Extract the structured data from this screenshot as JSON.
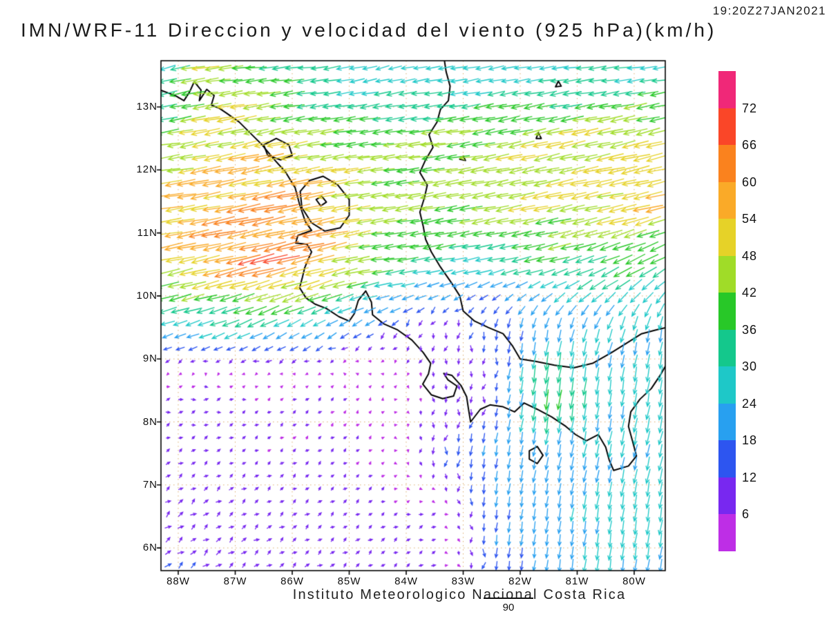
{
  "header": {
    "title": "IMN/WRF-11 Direccion y velocidad del viento (925 hPa)(km/h)",
    "timestamp": "19:20Z27JAN2021"
  },
  "footer": {
    "credit": "Instituto Meteorologico Nacional Costa Rica",
    "reference_vector_label": "90"
  },
  "chart_data": {
    "type": "vector-field-map",
    "title": "IMN/WRF-11 Direccion y velocidad del viento (925 hPa)(km/h)",
    "valid_time": "19:20Z27JAN2021",
    "variable": "wind direction and speed",
    "level_hpa": 925,
    "units": "km/h",
    "lon_range_deg": [
      -88.3,
      -79.45
    ],
    "lat_range_deg": [
      5.64,
      13.73
    ],
    "lat_tick_deg": [
      13,
      12,
      11,
      10,
      9,
      8,
      7,
      6
    ],
    "lat_tick_labels": [
      "13N",
      "12N",
      "11N",
      "10N",
      "9N",
      "8N",
      "7N",
      "6N"
    ],
    "lon_tick_deg": [
      -88,
      -87,
      -86,
      -85,
      -84,
      -83,
      -82,
      -81,
      -80
    ],
    "lon_tick_labels": [
      "88W",
      "87W",
      "86W",
      "85W",
      "84W",
      "83W",
      "82W",
      "81W",
      "80W"
    ],
    "reference_vector_kmh": 90,
    "colorbar": {
      "tick_labels": [
        "72",
        "66",
        "60",
        "54",
        "48",
        "42",
        "36",
        "30",
        "24",
        "18",
        "12",
        "6"
      ],
      "thresholds_kmh": [
        6,
        12,
        18,
        24,
        30,
        36,
        42,
        48,
        54,
        60,
        66,
        72
      ],
      "cell_colors_top_to_bottom": [
        "#f02878",
        "#fa4628",
        "#fa821e",
        "#faaa28",
        "#e6d228",
        "#a0dc28",
        "#28c828",
        "#14c88c",
        "#1ec8c8",
        "#28a0f0",
        "#2d55f0",
        "#7828f0",
        "#be2ee6"
      ]
    },
    "wind_grid": {
      "note": "u eastward km/h, v northward km/h; rows ordered south-to-north matching lats",
      "lats": [
        5.5,
        6.5,
        7.5,
        8.5,
        9.5,
        10.5,
        11.5,
        12.5,
        13.5
      ],
      "lons": [
        -88.5,
        -87.5,
        -86.5,
        -85.5,
        -84.5,
        -83.5,
        -82.5,
        -81.5,
        -80.5,
        -79.5
      ],
      "u": [
        [
          11,
          9,
          8,
          7,
          6,
          6,
          -2,
          -3,
          -3,
          -4
        ],
        [
          9,
          8,
          7,
          6,
          6,
          7,
          -2,
          -3,
          -4,
          -4
        ],
        [
          6,
          6,
          5,
          5,
          4,
          -2,
          -3,
          -4,
          -5,
          -6
        ],
        [
          7,
          8,
          5,
          5,
          2,
          0,
          -2,
          -6,
          -3,
          -5
        ],
        [
          -23,
          -26,
          -26,
          -20,
          -12,
          -3,
          -2,
          -4,
          -8,
          -4
        ],
        [
          -48,
          -55,
          -64,
          -56,
          -40,
          -30,
          -29,
          -34,
          -34,
          -32
        ],
        [
          -54,
          -56,
          -60,
          -56,
          -44,
          -44,
          -45,
          -48,
          -50,
          -52
        ],
        [
          -36,
          -50,
          -48,
          -42,
          -40,
          -42,
          -43,
          -46,
          -48,
          -48
        ],
        [
          -22,
          -46,
          -38,
          -29,
          -25,
          -26,
          -27,
          -28,
          -30,
          -30
        ]
      ],
      "v": [
        [
          8,
          7,
          6,
          5,
          5,
          4,
          -16,
          -20,
          -24,
          -24
        ],
        [
          7,
          6,
          5,
          5,
          4,
          2,
          -17,
          -21,
          -26,
          -26
        ],
        [
          4,
          4,
          4,
          4,
          4,
          -12,
          -19,
          -21,
          -23,
          -25
        ],
        [
          2,
          1,
          3,
          4,
          5,
          -8,
          -10,
          -40,
          -24,
          -27
        ],
        [
          -8,
          -9,
          -13,
          -12,
          -9,
          -9,
          -14,
          -20,
          -22,
          -24
        ],
        [
          -10,
          -12,
          -16,
          -14,
          -5,
          -5,
          -6,
          -8,
          -14,
          -18
        ],
        [
          -6,
          -10,
          -12,
          -10,
          -6,
          -8,
          -8,
          -10,
          -10,
          -12
        ],
        [
          -5,
          -10,
          -10,
          -6,
          -5,
          -5,
          -8,
          -10,
          -10,
          -12
        ],
        [
          -8,
          -6,
          -4,
          -4,
          -6,
          -4,
          -5,
          -4,
          -4,
          -4
        ]
      ]
    },
    "coastlines": [
      [
        [
          -88.32,
          13.27
        ],
        [
          -88.05,
          13.18
        ],
        [
          -87.9,
          13.1
        ],
        [
          -87.8,
          13.24
        ],
        [
          -87.72,
          13.4
        ],
        [
          -87.6,
          13.27
        ],
        [
          -87.63,
          13.1
        ],
        [
          -87.5,
          13.28
        ],
        [
          -87.37,
          13.18
        ],
        [
          -87.42,
          13.03
        ],
        [
          -87.28,
          12.98
        ],
        [
          -87.15,
          12.9
        ],
        [
          -86.93,
          12.76
        ],
        [
          -86.73,
          12.58
        ],
        [
          -86.53,
          12.4
        ],
        [
          -86.33,
          12.18
        ],
        [
          -86.12,
          11.97
        ],
        [
          -85.95,
          11.72
        ],
        [
          -85.87,
          11.45
        ],
        [
          -85.77,
          11.18
        ],
        [
          -85.66,
          11.04
        ],
        [
          -85.9,
          10.96
        ],
        [
          -85.94,
          10.84
        ],
        [
          -85.74,
          10.82
        ],
        [
          -85.66,
          10.7
        ],
        [
          -85.72,
          10.58
        ],
        [
          -85.78,
          10.45
        ],
        [
          -85.82,
          10.3
        ],
        [
          -85.87,
          10.13
        ],
        [
          -85.76,
          9.97
        ],
        [
          -85.6,
          9.87
        ],
        [
          -85.4,
          9.8
        ],
        [
          -85.18,
          9.67
        ],
        [
          -85.0,
          9.6
        ],
        [
          -84.91,
          9.72
        ],
        [
          -84.84,
          9.93
        ],
        [
          -84.71,
          10.08
        ],
        [
          -84.61,
          9.9
        ],
        [
          -84.59,
          9.7
        ],
        [
          -84.4,
          9.56
        ],
        [
          -84.15,
          9.46
        ],
        [
          -83.9,
          9.3
        ],
        [
          -83.7,
          9.1
        ],
        [
          -83.57,
          8.93
        ],
        [
          -83.61,
          8.76
        ],
        [
          -83.71,
          8.6
        ],
        [
          -83.56,
          8.43
        ],
        [
          -83.36,
          8.37
        ],
        [
          -83.17,
          8.41
        ],
        [
          -83.11,
          8.57
        ],
        [
          -83.27,
          8.67
        ],
        [
          -83.34,
          8.77
        ],
        [
          -83.2,
          8.74
        ],
        [
          -83.04,
          8.58
        ],
        [
          -82.94,
          8.4
        ],
        [
          -82.91,
          8.22
        ],
        [
          -82.87,
          8.0
        ],
        [
          -82.7,
          8.2
        ],
        [
          -82.53,
          8.27
        ],
        [
          -82.3,
          8.24
        ],
        [
          -82.1,
          8.16
        ],
        [
          -81.93,
          8.3
        ],
        [
          -81.7,
          8.2
        ],
        [
          -81.45,
          8.08
        ],
        [
          -81.2,
          7.93
        ],
        [
          -81.03,
          7.8
        ],
        [
          -80.84,
          7.7
        ],
        [
          -80.63,
          7.8
        ],
        [
          -80.5,
          7.6
        ],
        [
          -80.44,
          7.4
        ],
        [
          -80.36,
          7.23
        ],
        [
          -80.1,
          7.3
        ],
        [
          -79.96,
          7.46
        ],
        [
          -80.03,
          7.7
        ],
        [
          -80.1,
          7.93
        ],
        [
          -80.06,
          8.16
        ],
        [
          -79.9,
          8.36
        ],
        [
          -79.7,
          8.53
        ],
        [
          -79.53,
          8.76
        ],
        [
          -79.43,
          8.92
        ]
      ],
      [
        [
          -79.43,
          9.5
        ],
        [
          -79.62,
          9.46
        ],
        [
          -79.87,
          9.4
        ],
        [
          -80.1,
          9.27
        ],
        [
          -80.4,
          9.1
        ],
        [
          -80.73,
          8.93
        ],
        [
          -81.06,
          8.86
        ],
        [
          -81.4,
          8.9
        ],
        [
          -81.73,
          8.96
        ],
        [
          -82.0,
          9.0
        ],
        [
          -82.13,
          9.2
        ],
        [
          -82.3,
          9.4
        ],
        [
          -82.56,
          9.5
        ],
        [
          -82.8,
          9.6
        ],
        [
          -83.0,
          9.76
        ],
        [
          -83.06,
          10.0
        ],
        [
          -83.2,
          10.2
        ],
        [
          -83.4,
          10.46
        ],
        [
          -83.56,
          10.7
        ],
        [
          -83.66,
          10.9
        ],
        [
          -83.7,
          11.1
        ],
        [
          -83.76,
          11.33
        ],
        [
          -83.68,
          11.56
        ],
        [
          -83.63,
          11.76
        ],
        [
          -83.76,
          11.96
        ],
        [
          -83.66,
          12.16
        ],
        [
          -83.53,
          12.36
        ],
        [
          -83.6,
          12.56
        ],
        [
          -83.46,
          12.76
        ],
        [
          -83.4,
          12.96
        ],
        [
          -83.26,
          13.1
        ],
        [
          -83.23,
          13.33
        ],
        [
          -83.3,
          13.56
        ],
        [
          -83.33,
          13.74
        ]
      ],
      [
        [
          -85.86,
          11.66
        ],
        [
          -85.7,
          11.83
        ],
        [
          -85.46,
          11.9
        ],
        [
          -85.2,
          11.76
        ],
        [
          -85.0,
          11.53
        ],
        [
          -85.0,
          11.28
        ],
        [
          -85.16,
          11.08
        ],
        [
          -85.43,
          11.03
        ],
        [
          -85.66,
          11.16
        ],
        [
          -85.83,
          11.4
        ],
        [
          -85.86,
          11.66
        ]
      ],
      [
        [
          -86.5,
          12.4
        ],
        [
          -86.28,
          12.5
        ],
        [
          -86.06,
          12.4
        ],
        [
          -86.0,
          12.23
        ],
        [
          -86.2,
          12.16
        ],
        [
          -86.43,
          12.23
        ],
        [
          -86.5,
          12.4
        ]
      ],
      [
        [
          -85.58,
          11.53
        ],
        [
          -85.48,
          11.58
        ],
        [
          -85.4,
          11.49
        ],
        [
          -85.5,
          11.43
        ],
        [
          -85.58,
          11.53
        ]
      ],
      [
        [
          -81.84,
          7.54
        ],
        [
          -81.7,
          7.61
        ],
        [
          -81.6,
          7.47
        ],
        [
          -81.7,
          7.34
        ],
        [
          -81.84,
          7.41
        ],
        [
          -81.84,
          7.54
        ]
      ],
      [
        [
          -81.72,
          12.5
        ],
        [
          -81.68,
          12.59
        ],
        [
          -81.63,
          12.5
        ],
        [
          -81.72,
          12.5
        ]
      ],
      [
        [
          -81.38,
          13.32
        ],
        [
          -81.33,
          13.41
        ],
        [
          -81.28,
          13.33
        ],
        [
          -81.38,
          13.32
        ]
      ],
      [
        [
          -83.06,
          12.17
        ],
        [
          -83.0,
          12.22
        ],
        [
          -82.96,
          12.15
        ],
        [
          -83.06,
          12.17
        ]
      ]
    ]
  }
}
